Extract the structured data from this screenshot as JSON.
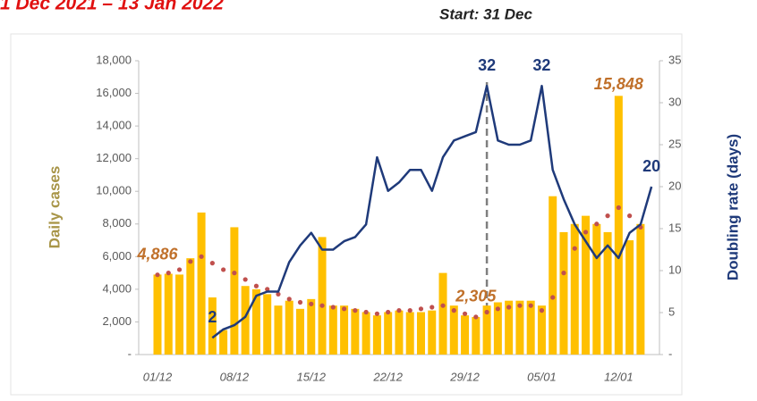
{
  "chart_data": {
    "type": "combo",
    "title": "1 Dec 2021 – 13 Jan 2022",
    "vline": {
      "label": "Start: 31 Dec",
      "at": 30
    },
    "ylabel": "Daily cases",
    "y2label": "Doubling rate (days)",
    "categories": [
      "01/12",
      null,
      null,
      null,
      null,
      null,
      null,
      "08/12",
      null,
      null,
      null,
      null,
      null,
      null,
      "15/12",
      null,
      null,
      null,
      null,
      null,
      null,
      "22/12",
      null,
      null,
      null,
      null,
      null,
      null,
      "29/12",
      null,
      null,
      null,
      null,
      null,
      null,
      "05/01",
      null,
      null,
      null,
      null,
      null,
      null,
      "12/01",
      null,
      null,
      null
    ],
    "ylim": [
      0,
      18000
    ],
    "yticks": [
      {
        "value": 0,
        "label": "-"
      },
      {
        "value": 2000,
        "label": "2,000"
      },
      {
        "value": 4000,
        "label": "4,000"
      },
      {
        "value": 6000,
        "label": "6,000"
      },
      {
        "value": 8000,
        "label": "8,000"
      },
      {
        "value": 10000,
        "label": "10,000"
      },
      {
        "value": 12000,
        "label": "12,000"
      },
      {
        "value": 14000,
        "label": "14,000"
      },
      {
        "value": 16000,
        "label": "16,000"
      },
      {
        "value": 18000,
        "label": "18,000"
      }
    ],
    "y2lim": [
      0,
      35
    ],
    "y2ticks": [
      {
        "value": 0,
        "label": "-"
      },
      5,
      10,
      15,
      20,
      25,
      30,
      35
    ],
    "series": [
      {
        "kind": "bar",
        "color": "#ffc000",
        "values": [
          4900,
          4950,
          4900,
          5900,
          8700,
          3500,
          1500,
          7800,
          4200,
          4000,
          3700,
          3000,
          3300,
          2800,
          3400,
          7200,
          3000,
          3000,
          2800,
          2600,
          2400,
          2600,
          2700,
          2600,
          2600,
          2700,
          5000,
          3000,
          2400,
          2300,
          3000,
          3200,
          3300,
          3300,
          3300,
          3000,
          9700,
          7500,
          8000,
          8500,
          8000,
          7500,
          15848,
          7000,
          8000,
          null
        ],
        "value_labels": [
          null,
          null,
          null,
          null,
          null,
          null,
          null,
          null,
          null,
          null,
          null,
          null,
          null,
          null,
          null,
          null,
          null,
          null,
          null,
          null,
          null,
          null,
          null,
          null,
          null,
          null,
          null,
          null,
          null,
          null,
          null,
          null,
          null,
          null,
          null,
          null,
          null,
          null,
          null,
          null,
          null,
          null,
          "15,848",
          null,
          null,
          null
        ]
      },
      {
        "kind": "dots",
        "color": "#c0504d",
        "values": [
          4886,
          5000,
          5200,
          5700,
          6000,
          5600,
          5200,
          5000,
          4600,
          4200,
          4000,
          3700,
          3400,
          3200,
          3100,
          3000,
          2900,
          2800,
          2700,
          2600,
          2500,
          2600,
          2700,
          2700,
          2800,
          2900,
          3000,
          2700,
          2500,
          2305,
          2600,
          2800,
          2900,
          3000,
          3000,
          2700,
          3500,
          5000,
          6500,
          7500,
          8000,
          8500,
          9000,
          8500,
          7800,
          null
        ],
        "value_labels": [
          "4,886",
          null,
          null,
          null,
          null,
          null,
          null,
          null,
          null,
          null,
          null,
          null,
          null,
          null,
          null,
          null,
          null,
          null,
          null,
          null,
          null,
          null,
          null,
          null,
          null,
          null,
          null,
          null,
          null,
          "2,305",
          null,
          null,
          null,
          null,
          null,
          null,
          null,
          null,
          null,
          null,
          null,
          null,
          null,
          null,
          null,
          null
        ]
      },
      {
        "kind": "line",
        "axis": "y2",
        "color": "#1f3a7a",
        "values": [
          null,
          null,
          null,
          null,
          null,
          2,
          3,
          3.5,
          4.5,
          7,
          7.5,
          7.5,
          11,
          13,
          14.5,
          12.5,
          12.5,
          13.5,
          14,
          15.5,
          23.5,
          19.5,
          20.5,
          22,
          22,
          19.5,
          23.5,
          25.5,
          26,
          26.5,
          32,
          25.5,
          25,
          25,
          25.5,
          32,
          22,
          18.5,
          15.5,
          13.5,
          11.5,
          13,
          11.5,
          14.5,
          15.5,
          20
        ],
        "value_labels": [
          null,
          null,
          null,
          null,
          null,
          "2",
          null,
          null,
          null,
          null,
          null,
          null,
          null,
          null,
          null,
          null,
          null,
          null,
          null,
          null,
          null,
          null,
          null,
          null,
          null,
          null,
          null,
          null,
          null,
          null,
          "32",
          null,
          null,
          null,
          null,
          "32",
          null,
          null,
          null,
          null,
          null,
          null,
          null,
          null,
          null,
          "20"
        ]
      }
    ]
  }
}
